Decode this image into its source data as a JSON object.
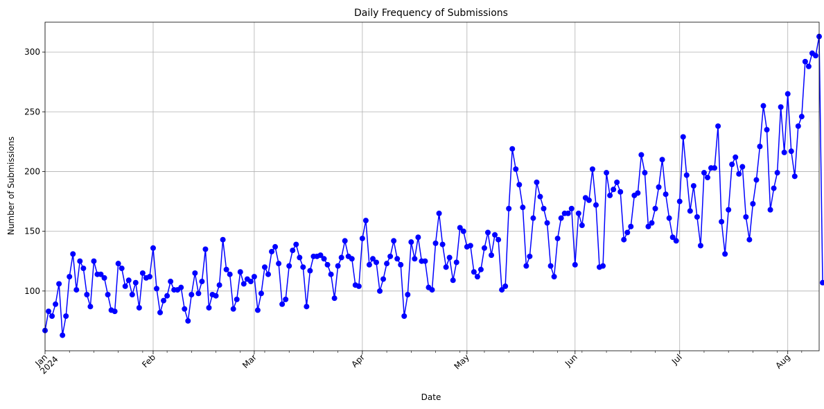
{
  "chart_data": {
    "type": "line",
    "title": "Daily Frequency of Submissions",
    "xlabel": "Date",
    "ylabel": "Number of Submissions",
    "grid": true,
    "line_color": "#0000ff",
    "marker": "circle",
    "ylim": [
      50,
      325
    ],
    "xlim": [
      "2024-01-01",
      "2024-08-10"
    ],
    "yticks": [
      100,
      150,
      200,
      250,
      300
    ],
    "xticks": [
      {
        "date": "2024-01-01",
        "label": "Jan",
        "sublabel": "2024"
      },
      {
        "date": "2024-02-01",
        "label": "Feb"
      },
      {
        "date": "2024-03-01",
        "label": "Mar"
      },
      {
        "date": "2024-04-01",
        "label": "Apr"
      },
      {
        "date": "2024-05-01",
        "label": "May"
      },
      {
        "date": "2024-06-01",
        "label": "Jun"
      },
      {
        "date": "2024-07-01",
        "label": "Jul"
      },
      {
        "date": "2024-08-01",
        "label": "Aug"
      }
    ],
    "start_date": "2024-01-01",
    "values": [
      67,
      83,
      79,
      89,
      106,
      63,
      79,
      112,
      131,
      101,
      125,
      119,
      97,
      87,
      125,
      114,
      114,
      111,
      97,
      84,
      83,
      123,
      119,
      104,
      109,
      97,
      107,
      86,
      115,
      111,
      112,
      136,
      102,
      82,
      92,
      96,
      108,
      101,
      101,
      103,
      85,
      75,
      97,
      115,
      98,
      108,
      135,
      86,
      97,
      96,
      105,
      143,
      118,
      114,
      85,
      93,
      116,
      106,
      110,
      108,
      112,
      84,
      98,
      120,
      114,
      133,
      137,
      123,
      89,
      93,
      121,
      134,
      139,
      128,
      120,
      87,
      117,
      129,
      129,
      130,
      127,
      122,
      114,
      94,
      121,
      128,
      142,
      129,
      127,
      105,
      104,
      144,
      159,
      122,
      127,
      124,
      100,
      110,
      123,
      129,
      142,
      127,
      122,
      79,
      97,
      141,
      127,
      145,
      125,
      125,
      103,
      101,
      140,
      165,
      139,
      120,
      128,
      109,
      124,
      153,
      150,
      137,
      138,
      116,
      112,
      118,
      136,
      149,
      130,
      147,
      143,
      101,
      104,
      169,
      219,
      202,
      189,
      170,
      121,
      129,
      161,
      191,
      179,
      169,
      157,
      121,
      112,
      144,
      161,
      165,
      165,
      169,
      122,
      165,
      155,
      178,
      176,
      202,
      172,
      120,
      121,
      199,
      180,
      185,
      191,
      183,
      143,
      149,
      154,
      180,
      182,
      214,
      199,
      154,
      157,
      169,
      187,
      210,
      181,
      161,
      145,
      142,
      175,
      229,
      197,
      167,
      188,
      162,
      138,
      199,
      195,
      203,
      203,
      238,
      158,
      131,
      168,
      206,
      212,
      198,
      204,
      162,
      143,
      173,
      193,
      221,
      255,
      235,
      168,
      186,
      199,
      254,
      216,
      265,
      217,
      196,
      238,
      246,
      292,
      288,
      299,
      297,
      313,
      107
    ]
  }
}
